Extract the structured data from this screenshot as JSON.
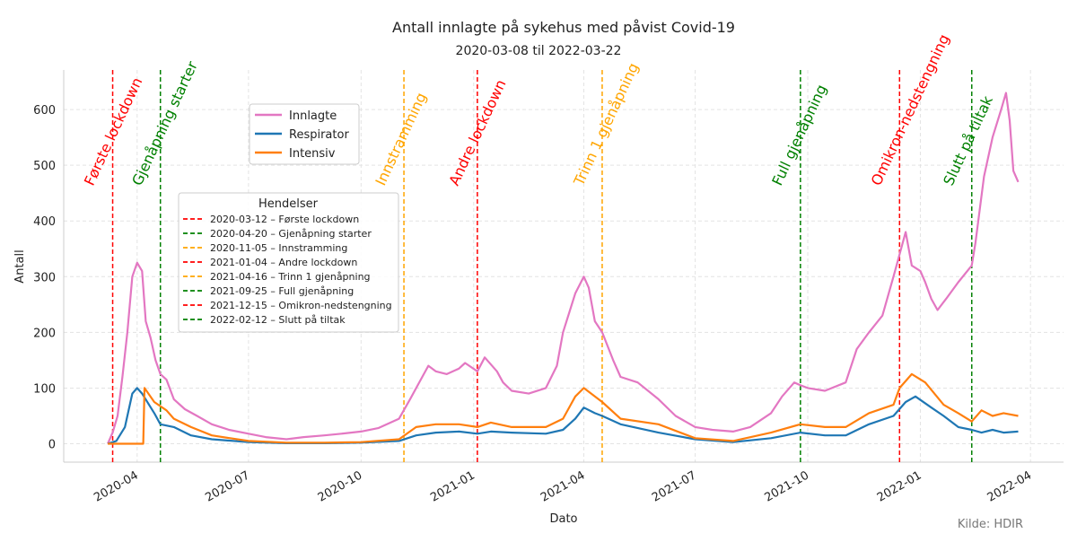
{
  "chart_data": {
    "type": "line",
    "title": "Antall innlagte på sykehus med påvist Covid-19",
    "subtitle": "2020-03-08 til 2022-03-22",
    "xlabel": "Dato",
    "ylabel": "Antall",
    "source": "Kilde: HDIR",
    "xlim": [
      "2020-02-01",
      "2022-04-28"
    ],
    "ylim": [
      -33,
      671
    ],
    "x_ticks": [
      "2020-04",
      "2020-07",
      "2020-10",
      "2021-01",
      "2021-04",
      "2021-07",
      "2021-10",
      "2022-01",
      "2022-04"
    ],
    "y_ticks": [
      0,
      100,
      200,
      300,
      400,
      500,
      600
    ],
    "grid": true,
    "legend_placement": "upper-left",
    "series": [
      {
        "name": "Innlagte",
        "color": "#e377c2",
        "points": [
          [
            "2020-03-08",
            0
          ],
          [
            "2020-03-12",
            20
          ],
          [
            "2020-03-16",
            50
          ],
          [
            "2020-03-20",
            120
          ],
          [
            "2020-03-24",
            200
          ],
          [
            "2020-03-28",
            300
          ],
          [
            "2020-04-01",
            325
          ],
          [
            "2020-04-05",
            310
          ],
          [
            "2020-04-08",
            220
          ],
          [
            "2020-04-12",
            190
          ],
          [
            "2020-04-16",
            150
          ],
          [
            "2020-04-20",
            125
          ],
          [
            "2020-04-25",
            115
          ],
          [
            "2020-05-01",
            80
          ],
          [
            "2020-05-10",
            62
          ],
          [
            "2020-05-20",
            50
          ],
          [
            "2020-06-01",
            35
          ],
          [
            "2020-06-15",
            25
          ],
          [
            "2020-07-01",
            18
          ],
          [
            "2020-07-15",
            12
          ],
          [
            "2020-08-01",
            8
          ],
          [
            "2020-08-15",
            12
          ],
          [
            "2020-09-01",
            15
          ],
          [
            "2020-09-15",
            18
          ],
          [
            "2020-10-01",
            22
          ],
          [
            "2020-10-15",
            28
          ],
          [
            "2020-11-01",
            45
          ],
          [
            "2020-11-10",
            80
          ],
          [
            "2020-11-20",
            120
          ],
          [
            "2020-11-25",
            140
          ],
          [
            "2020-12-01",
            130
          ],
          [
            "2020-12-10",
            125
          ],
          [
            "2020-12-20",
            135
          ],
          [
            "2020-12-25",
            145
          ],
          [
            "2021-01-04",
            130
          ],
          [
            "2021-01-10",
            155
          ],
          [
            "2021-01-20",
            130
          ],
          [
            "2021-01-25",
            110
          ],
          [
            "2021-02-01",
            95
          ],
          [
            "2021-02-15",
            90
          ],
          [
            "2021-03-01",
            100
          ],
          [
            "2021-03-10",
            140
          ],
          [
            "2021-03-15",
            200
          ],
          [
            "2021-03-25",
            270
          ],
          [
            "2021-04-01",
            300
          ],
          [
            "2021-04-05",
            280
          ],
          [
            "2021-04-10",
            220
          ],
          [
            "2021-04-16",
            200
          ],
          [
            "2021-04-25",
            150
          ],
          [
            "2021-05-01",
            120
          ],
          [
            "2021-05-15",
            110
          ],
          [
            "2021-06-01",
            80
          ],
          [
            "2021-06-15",
            50
          ],
          [
            "2021-07-01",
            30
          ],
          [
            "2021-07-15",
            25
          ],
          [
            "2021-08-01",
            22
          ],
          [
            "2021-08-15",
            30
          ],
          [
            "2021-09-01",
            55
          ],
          [
            "2021-09-10",
            85
          ],
          [
            "2021-09-20",
            110
          ],
          [
            "2021-09-25",
            105
          ],
          [
            "2021-10-01",
            100
          ],
          [
            "2021-10-15",
            95
          ],
          [
            "2021-11-01",
            110
          ],
          [
            "2021-11-10",
            170
          ],
          [
            "2021-11-20",
            200
          ],
          [
            "2021-12-01",
            230
          ],
          [
            "2021-12-10",
            300
          ],
          [
            "2021-12-15",
            340
          ],
          [
            "2021-12-20",
            380
          ],
          [
            "2021-12-25",
            320
          ],
          [
            "2022-01-01",
            310
          ],
          [
            "2022-01-05",
            290
          ],
          [
            "2022-01-10",
            260
          ],
          [
            "2022-01-15",
            240
          ],
          [
            "2022-01-22",
            260
          ],
          [
            "2022-02-01",
            290
          ],
          [
            "2022-02-12",
            320
          ],
          [
            "2022-02-15",
            360
          ],
          [
            "2022-02-22",
            480
          ],
          [
            "2022-03-01",
            550
          ],
          [
            "2022-03-08",
            600
          ],
          [
            "2022-03-12",
            630
          ],
          [
            "2022-03-15",
            580
          ],
          [
            "2022-03-18",
            490
          ],
          [
            "2022-03-22",
            470
          ]
        ]
      },
      {
        "name": "Respirator",
        "color": "#1f77b4",
        "points": [
          [
            "2020-03-08",
            0
          ],
          [
            "2020-03-15",
            5
          ],
          [
            "2020-03-22",
            30
          ],
          [
            "2020-03-28",
            90
          ],
          [
            "2020-04-01",
            100
          ],
          [
            "2020-04-05",
            90
          ],
          [
            "2020-04-15",
            55
          ],
          [
            "2020-04-20",
            35
          ],
          [
            "2020-05-01",
            30
          ],
          [
            "2020-05-15",
            15
          ],
          [
            "2020-06-01",
            8
          ],
          [
            "2020-07-01",
            3
          ],
          [
            "2020-08-01",
            1
          ],
          [
            "2020-09-01",
            1
          ],
          [
            "2020-10-01",
            2
          ],
          [
            "2020-11-01",
            5
          ],
          [
            "2020-11-15",
            15
          ],
          [
            "2020-12-01",
            20
          ],
          [
            "2020-12-20",
            22
          ],
          [
            "2021-01-04",
            18
          ],
          [
            "2021-01-15",
            22
          ],
          [
            "2021-02-01",
            20
          ],
          [
            "2021-03-01",
            18
          ],
          [
            "2021-03-15",
            25
          ],
          [
            "2021-03-25",
            45
          ],
          [
            "2021-04-01",
            65
          ],
          [
            "2021-04-10",
            55
          ],
          [
            "2021-04-16",
            50
          ],
          [
            "2021-05-01",
            35
          ],
          [
            "2021-06-01",
            20
          ],
          [
            "2021-07-01",
            8
          ],
          [
            "2021-08-01",
            3
          ],
          [
            "2021-09-01",
            10
          ],
          [
            "2021-09-25",
            20
          ],
          [
            "2021-10-15",
            15
          ],
          [
            "2021-11-01",
            15
          ],
          [
            "2021-11-20",
            35
          ],
          [
            "2021-12-10",
            50
          ],
          [
            "2021-12-20",
            75
          ],
          [
            "2021-12-28",
            85
          ],
          [
            "2022-01-10",
            65
          ],
          [
            "2022-01-20",
            50
          ],
          [
            "2022-02-01",
            30
          ],
          [
            "2022-02-12",
            25
          ],
          [
            "2022-02-20",
            20
          ],
          [
            "2022-03-01",
            25
          ],
          [
            "2022-03-10",
            20
          ],
          [
            "2022-03-22",
            22
          ]
        ]
      },
      {
        "name": "Intensiv",
        "color": "#ff7f0e",
        "points": [
          [
            "2020-03-08",
            0
          ],
          [
            "2020-04-06",
            0
          ],
          [
            "2020-04-07",
            100
          ],
          [
            "2020-04-15",
            75
          ],
          [
            "2020-04-25",
            60
          ],
          [
            "2020-05-01",
            45
          ],
          [
            "2020-05-15",
            30
          ],
          [
            "2020-06-01",
            15
          ],
          [
            "2020-07-01",
            5
          ],
          [
            "2020-08-01",
            2
          ],
          [
            "2020-09-01",
            2
          ],
          [
            "2020-10-01",
            3
          ],
          [
            "2020-11-01",
            8
          ],
          [
            "2020-11-15",
            30
          ],
          [
            "2020-12-01",
            35
          ],
          [
            "2020-12-20",
            35
          ],
          [
            "2021-01-04",
            30
          ],
          [
            "2021-01-15",
            38
          ],
          [
            "2021-02-01",
            30
          ],
          [
            "2021-03-01",
            30
          ],
          [
            "2021-03-15",
            45
          ],
          [
            "2021-03-25",
            85
          ],
          [
            "2021-04-01",
            100
          ],
          [
            "2021-04-10",
            85
          ],
          [
            "2021-04-16",
            75
          ],
          [
            "2021-05-01",
            45
          ],
          [
            "2021-06-01",
            35
          ],
          [
            "2021-07-01",
            10
          ],
          [
            "2021-08-01",
            5
          ],
          [
            "2021-09-01",
            20
          ],
          [
            "2021-09-25",
            35
          ],
          [
            "2021-10-15",
            30
          ],
          [
            "2021-11-01",
            30
          ],
          [
            "2021-11-20",
            55
          ],
          [
            "2021-12-10",
            70
          ],
          [
            "2021-12-15",
            100
          ],
          [
            "2021-12-25",
            125
          ],
          [
            "2022-01-05",
            110
          ],
          [
            "2022-01-20",
            70
          ],
          [
            "2022-02-01",
            55
          ],
          [
            "2022-02-12",
            40
          ],
          [
            "2022-02-20",
            60
          ],
          [
            "2022-03-01",
            50
          ],
          [
            "2022-03-10",
            55
          ],
          [
            "2022-03-22",
            50
          ]
        ]
      }
    ],
    "events_legend_title": "Hendelser",
    "events": [
      {
        "date": "2020-03-12",
        "label": "Første lockdown",
        "legend": "2020-03-12 – Første lockdown",
        "color": "#ff0000"
      },
      {
        "date": "2020-04-20",
        "label": "Gjenåpning starter",
        "legend": "2020-04-20 – Gjenåpning starter",
        "color": "#008000"
      },
      {
        "date": "2020-11-05",
        "label": "Innstramming",
        "legend": "2020-11-05 – Innstramming",
        "color": "#ffa500"
      },
      {
        "date": "2021-01-04",
        "label": "Andre lockdown",
        "legend": "2021-01-04 – Andre lockdown",
        "color": "#ff0000"
      },
      {
        "date": "2021-04-16",
        "label": "Trinn 1 gjenåpning",
        "legend": "2021-04-16 – Trinn 1 gjenåpning",
        "color": "#ffa500"
      },
      {
        "date": "2021-09-25",
        "label": "Full gjenåpning",
        "legend": "2021-09-25 – Full gjenåpning",
        "color": "#008000"
      },
      {
        "date": "2021-12-15",
        "label": "Omikron-nedstengning",
        "legend": "2021-12-15 – Omikron-nedstengning",
        "color": "#ff0000"
      },
      {
        "date": "2022-02-12",
        "label": "Slutt på tiltak",
        "legend": "2022-02-12 – Slutt på tiltak",
        "color": "#008000"
      }
    ]
  }
}
